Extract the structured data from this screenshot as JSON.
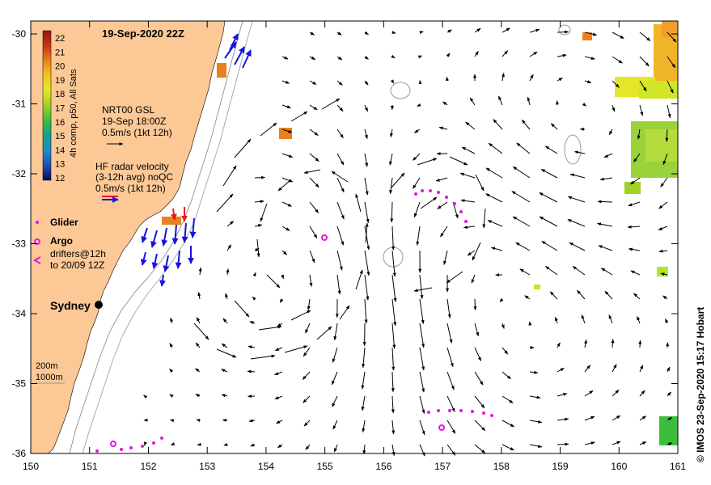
{
  "map": {
    "title": "19-Sep-2020 22Z",
    "credit": "© IMOS 23-Sep-2020 15:17 Hobart",
    "x_ticks": [
      "150",
      "151",
      "152",
      "153",
      "154",
      "155",
      "156",
      "157",
      "158",
      "159",
      "160",
      "161"
    ],
    "y_ticks": [
      "-30",
      "-31",
      "-32",
      "-33",
      "-34",
      "-35",
      "-36"
    ],
    "lon_range": [
      150,
      161
    ],
    "lat_range": [
      -36,
      -30
    ]
  },
  "colorbar": {
    "label": "4h comp, p50, All Sats",
    "ticks": [
      "22",
      "21",
      "20",
      "19",
      "18",
      "17",
      "16",
      "15",
      "14",
      "13",
      "12"
    ],
    "colors": [
      "#8b1a1a",
      "#c83214",
      "#e8821e",
      "#f0c81e",
      "#e6e628",
      "#a0d228",
      "#3cbe3c",
      "#14a08c",
      "#1e8cc8",
      "#1e50b4",
      "#14148c",
      "#0a0a5a"
    ]
  },
  "legend": {
    "gsl_title": "NRT00 GSL",
    "gsl_time": "19-Sep 18:00Z",
    "gsl_scale": "0.5m/s (1kt 12h)",
    "hf_title": "HF radar velocity",
    "hf_sub": "(3-12h avg) noQC",
    "hf_scale": "0.5m/s (1kt 12h)",
    "glider": "Glider",
    "argo": "Argo",
    "drifters_1": "drifters@12h",
    "drifters_2": "to 20/09 12Z",
    "contour_200": "200m",
    "contour_1000": "1000m"
  },
  "places": {
    "sydney": "Sydney"
  },
  "colors": {
    "land": "#fcc896",
    "velocity": "#000000",
    "hf_radar": "#1414dc",
    "hf_radar_alt": "#e61e1e",
    "glider": "#e614e6",
    "argo": "#e614e6",
    "drifter": "#e614e6"
  }
}
